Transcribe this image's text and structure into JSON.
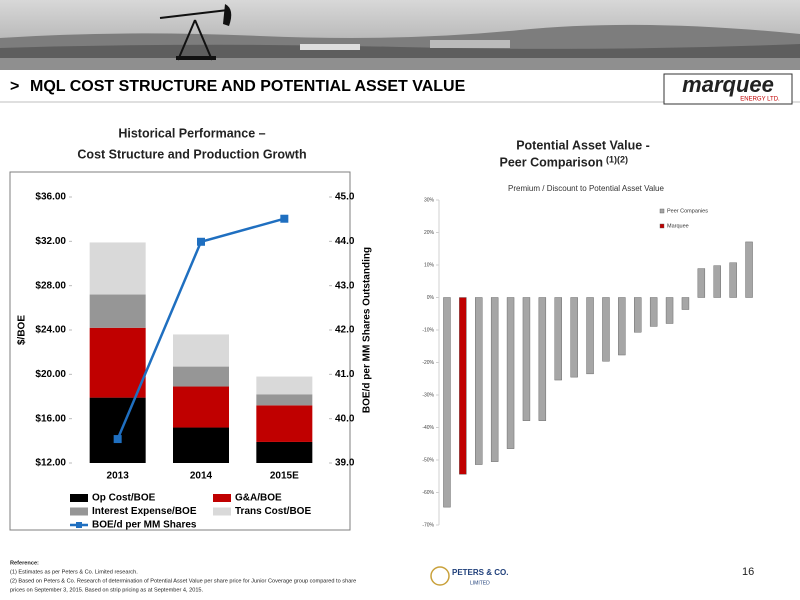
{
  "header": {
    "marker": ">",
    "title": "MQL COST STRUCTURE AND POTENTIAL ASSET VALUE",
    "logo_text": "marquee",
    "logo_subtext": "ENERGY LTD."
  },
  "chart_data": [
    {
      "type": "bar",
      "stacked": true,
      "title": "Historical Performance –",
      "subtitle": "Cost Structure and Production Growth",
      "ylabel": "$/BOE",
      "y2label": "BOE/d per MM Shares Outstanding",
      "categories": [
        "2013",
        "2014",
        "2015E"
      ],
      "series": [
        {
          "name": "Op Cost/BOE",
          "color": "#000000",
          "values": [
            17.9,
            15.2,
            13.9
          ]
        },
        {
          "name": "G&A/BOE",
          "color": "#c00000",
          "values": [
            6.3,
            3.7,
            3.3
          ]
        },
        {
          "name": "Interest Expense/BOE",
          "color": "#969696",
          "values": [
            3.0,
            1.8,
            1.0
          ]
        },
        {
          "name": "Trans Cost/BOE",
          "color": "#d9d9d9",
          "values": [
            4.7,
            2.9,
            1.6
          ]
        },
        {
          "name": "BOE/d per MM Shares",
          "type": "line",
          "axis": "y2",
          "color": "#1f6fc0",
          "values": [
            39.54,
            43.99,
            44.51
          ]
        }
      ],
      "ylim": [
        12,
        36
      ],
      "yticks": [
        {
          "value": 12,
          "label": "$12.00"
        },
        {
          "value": 16,
          "label": "$16.00"
        },
        {
          "value": 20,
          "label": "$20.00"
        },
        {
          "value": 24,
          "label": "$24.00"
        },
        {
          "value": 28,
          "label": "$28.00"
        },
        {
          "value": 32,
          "label": "$32.00"
        },
        {
          "value": 36,
          "label": "$36.00"
        }
      ],
      "y2lim": [
        39,
        45
      ],
      "y2ticks": [
        {
          "value": 39,
          "label": "39.0"
        },
        {
          "value": 40,
          "label": "40.0"
        },
        {
          "value": 41,
          "label": "41.0"
        },
        {
          "value": 42,
          "label": "42.0"
        },
        {
          "value": 43,
          "label": "43.0"
        },
        {
          "value": 44,
          "label": "44.0"
        },
        {
          "value": 45,
          "label": "45.0"
        }
      ]
    },
    {
      "type": "bar",
      "title": "Potential Asset Value -",
      "subtitle": "Peer Comparison",
      "title_superscript": "(1)(2)",
      "inner_title": "Premium / Discount to Potential Asset Value",
      "categories": [
        null,
        null,
        null,
        null,
        null,
        null,
        null,
        null,
        null,
        null,
        null,
        null,
        null,
        null,
        null,
        null,
        null,
        null,
        null,
        null
      ],
      "series": [
        {
          "name": "Peer Companies",
          "color": "#a6a6a6",
          "values": [
            -64.5,
            null,
            -51.4,
            -50.5,
            -46.5,
            -37.9,
            -37.9,
            -25.4,
            -24.5,
            -23.5,
            -19.6,
            -17.7,
            -10.7,
            -8.9,
            -8.0,
            -3.7,
            8.9,
            9.8,
            10.7,
            17.1
          ]
        },
        {
          "name": "Marquee",
          "color": "#c00000",
          "values": [
            null,
            -54.4,
            null,
            null,
            null,
            null,
            null,
            null,
            null,
            null,
            null,
            null,
            null,
            null,
            null,
            null,
            null,
            null,
            null,
            null
          ]
        }
      ],
      "ylim": [
        -70,
        30
      ],
      "yticks": [
        {
          "value": 30,
          "label": "30%"
        },
        {
          "value": 20,
          "label": "20%"
        },
        {
          "value": 10,
          "label": "10%"
        },
        {
          "value": 0,
          "label": "0%"
        },
        {
          "value": -10,
          "label": "-10%"
        },
        {
          "value": -20,
          "label": "-20%"
        },
        {
          "value": -30,
          "label": "-30%"
        },
        {
          "value": -40,
          "label": "-40%"
        },
        {
          "value": -50,
          "label": "-50%"
        },
        {
          "value": -60,
          "label": "-60%"
        },
        {
          "value": -70,
          "label": "-70%"
        }
      ]
    }
  ],
  "footer": {
    "references": [
      "Reference:",
      "(1) Estimates as per Peters & Co. Limited research.",
      "(2) Based on Peters & Co. Research of determination of Potential Asset Value per share price for Junior Coverage group compared to share",
      "prices on September 3, 2015. Based on strip pricing as at September 4, 2015."
    ],
    "logo_text": "PETERS & CO.",
    "logo_subtext": "LIMITED",
    "page_number": "16"
  }
}
